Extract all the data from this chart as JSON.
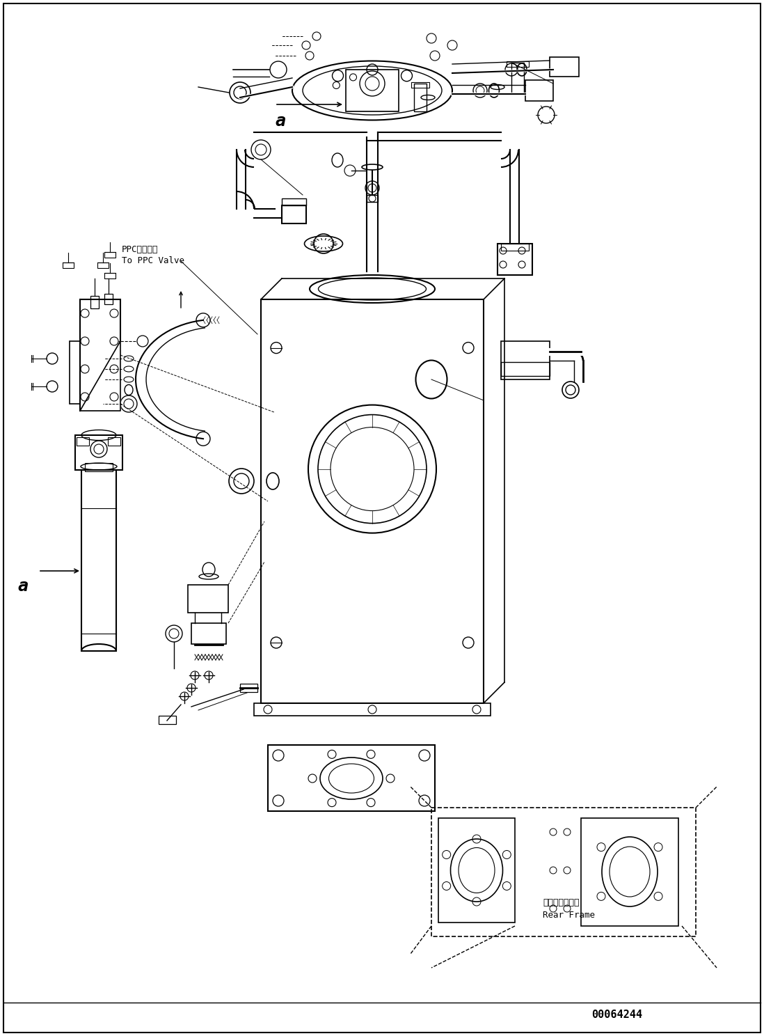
{
  "background_color": "#ffffff",
  "border_color": "#000000",
  "label_a_top": "a",
  "label_a_filter": "a",
  "label_ppc_jp": "PPCバルブへ",
  "label_ppc_en": "To PPC Valve",
  "label_rear_jp": "リヤーフレーム",
  "label_rear_en": "Rear Frame",
  "label_doc": "00064244"
}
